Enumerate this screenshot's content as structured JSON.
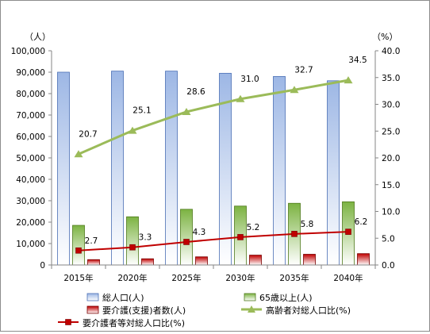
{
  "chart_data": {
    "type": "bar",
    "categories": [
      "2015年",
      "2020年",
      "2025年",
      "2030年",
      "2035年",
      "2040年"
    ],
    "y_left": {
      "unit": "（人）",
      "min": 0,
      "max": 100000,
      "step": 10000,
      "ticks": [
        "0",
        "10,000",
        "20,000",
        "30,000",
        "40,000",
        "50,000",
        "60,000",
        "70,000",
        "80,000",
        "90,000",
        "100,000"
      ]
    },
    "y_right": {
      "unit": "（%）",
      "min": 0,
      "max": 40,
      "step": 5,
      "ticks": [
        "0.0",
        "5.0",
        "10.0",
        "15.0",
        "20.0",
        "25.0",
        "30.0",
        "35.0",
        "40.0"
      ]
    },
    "series": [
      {
        "name": "総人口(人)",
        "kind": "bar",
        "axis": "left",
        "values": [
          90000,
          90500,
          90500,
          89500,
          88000,
          86000
        ]
      },
      {
        "name": "65歳以上(人)",
        "kind": "bar",
        "axis": "left",
        "values": [
          18500,
          22500,
          26000,
          27500,
          28800,
          29500
        ]
      },
      {
        "name": "要介護(支援)者数(人)",
        "kind": "bar",
        "axis": "left",
        "values": [
          2500,
          2900,
          3800,
          4600,
          5000,
          5300
        ]
      },
      {
        "name": "高齢者対総人口比(%)",
        "kind": "line",
        "axis": "right",
        "marker": "triangle",
        "values": [
          20.7,
          25.1,
          28.6,
          31.0,
          32.7,
          34.5
        ],
        "labels": [
          "20.7",
          "25.1",
          "28.6",
          "31.0",
          "32.7",
          "34.5"
        ]
      },
      {
        "name": "要介護者等対総人口比(%)",
        "kind": "line",
        "axis": "right",
        "marker": "square",
        "values": [
          2.7,
          3.3,
          4.3,
          5.2,
          5.8,
          6.2
        ],
        "labels": [
          "2.7",
          "3.3",
          "4.3",
          "5.2",
          "5.8",
          "6.2"
        ]
      }
    ],
    "colors": {
      "total_top": "#9db7e5",
      "total_bottom": "#ffffff",
      "total_stroke": "#4a6fb5",
      "aged_top": "#7cb342",
      "aged_bottom": "#ffffff",
      "aged_stroke": "#4f7a1c",
      "care_top": "#c00000",
      "care_bottom": "#ffffff",
      "care_stroke": "#7a0000",
      "aged_line": "#9bbb59",
      "care_line": "#c00000",
      "care_marker_fill": "#c00000"
    },
    "grid": false,
    "legend_position": "bottom"
  }
}
